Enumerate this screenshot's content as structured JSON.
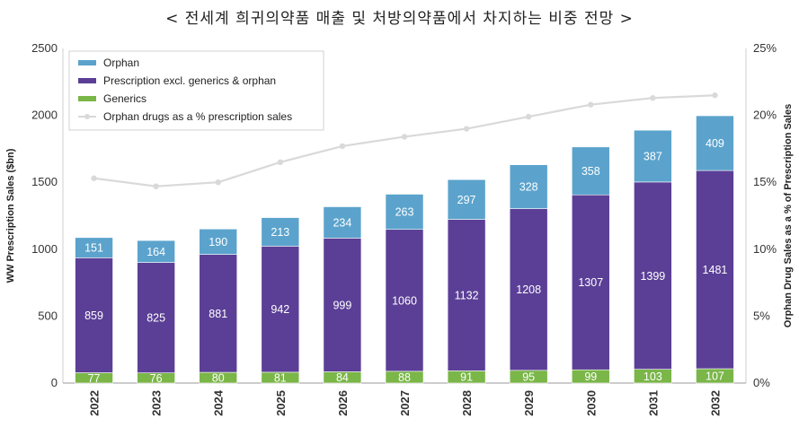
{
  "title": "< 전세계 희귀의약품 매출 및 처방의약품에서 차지하는 비중 전망 >",
  "chart_data": {
    "type": "bar",
    "stacked": true,
    "categories": [
      "2022",
      "2023",
      "2024",
      "2025",
      "2026",
      "2027",
      "2028",
      "2029",
      "2030",
      "2031",
      "2032"
    ],
    "series": [
      {
        "name": "Generics",
        "values": [
          77,
          76,
          80,
          81,
          84,
          88,
          91,
          95,
          99,
          103,
          107
        ],
        "color": "#7ab648"
      },
      {
        "name": "Prescription excl. generics & orphan",
        "values": [
          859,
          825,
          881,
          942,
          999,
          1060,
          1132,
          1208,
          1307,
          1399,
          1481
        ],
        "color": "#5b3f96"
      },
      {
        "name": "Orphan",
        "values": [
          151,
          164,
          190,
          213,
          234,
          263,
          297,
          328,
          358,
          387,
          409
        ],
        "color": "#5ba3cc"
      }
    ],
    "line_series": {
      "name": "Orphan drugs  as a % prescription sales",
      "values": [
        15.3,
        14.7,
        15.0,
        16.5,
        17.7,
        18.4,
        19.0,
        19.9,
        20.8,
        21.3,
        21.5
      ],
      "color": "#d9d9d9",
      "axis": "right"
    },
    "legend_order": [
      "Orphan",
      "Prescription excl. generics & orphan",
      "Generics",
      "Orphan drugs  as a % prescription sales"
    ],
    "ylabel": "WW Prescription Sales ($bn)",
    "y2label": "Orphan Drug Sales as a % of Prescription Sales",
    "ylim": [
      0,
      2500
    ],
    "y2lim": [
      0,
      25
    ],
    "yticks": [
      "0",
      "500",
      "1000",
      "1500",
      "2000",
      "2500"
    ],
    "y2ticks": [
      "0%",
      "5%",
      "10%",
      "15%",
      "20%",
      "25%"
    ],
    "grid": false,
    "legend": "top-left"
  }
}
